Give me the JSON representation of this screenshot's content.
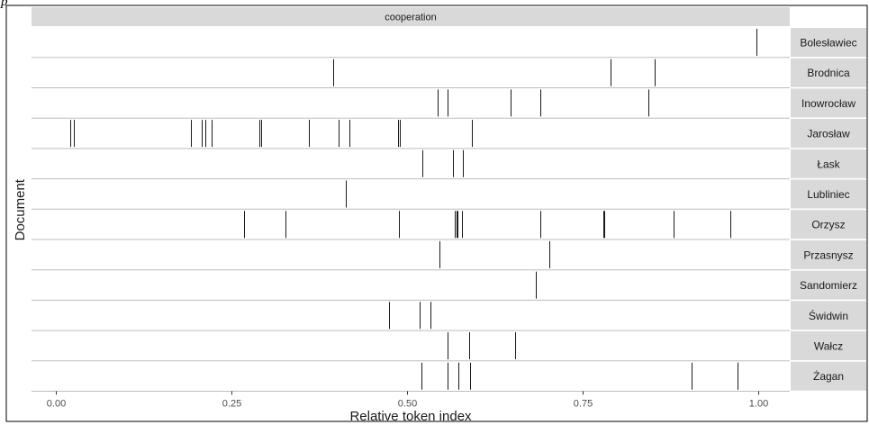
{
  "figure_mark": "p",
  "chart_data": {
    "type": "barcode",
    "facet_strip": "cooperation",
    "xlabel": "Relative token index",
    "ylabel": "Document",
    "xlim": [
      -0.035,
      1.045
    ],
    "x_ticks": [
      0.0,
      0.25,
      0.5,
      0.75,
      1.0
    ],
    "x_tick_labels": [
      "0.00",
      "0.25",
      "0.50",
      "0.75",
      "1.00"
    ],
    "grid": true,
    "series": [
      {
        "name": "Bolesławiec",
        "values": [
          0.997
        ]
      },
      {
        "name": "Brodnica",
        "values": [
          0.395,
          0.79,
          0.853
        ]
      },
      {
        "name": "Inowrocław",
        "values": [
          0.543,
          0.558,
          0.648,
          0.69,
          0.843
        ]
      },
      {
        "name": "Jarosław",
        "values": [
          0.02,
          0.025,
          0.192,
          0.207,
          0.212,
          0.222,
          0.29,
          0.292,
          0.36,
          0.403,
          0.418,
          0.487,
          0.49,
          0.592
        ]
      },
      {
        "name": "Łask",
        "values": [
          0.522,
          0.565,
          0.58
        ]
      },
      {
        "name": "Lubliniec",
        "values": [
          0.413
        ]
      },
      {
        "name": "Orzysz",
        "values": [
          0.268,
          0.327,
          0.488,
          0.568,
          0.57,
          0.572,
          0.578,
          0.69,
          0.78,
          0.781,
          0.88,
          0.96
        ]
      },
      {
        "name": "Przasnysz",
        "values": [
          0.546,
          0.703
        ]
      },
      {
        "name": "Sandomierz",
        "values": [
          0.683
        ]
      },
      {
        "name": "Świdwin",
        "values": [
          0.474,
          0.518,
          0.533
        ]
      },
      {
        "name": "Wałcz",
        "values": [
          0.557,
          0.589,
          0.654
        ]
      },
      {
        "name": "Żagan",
        "values": [
          0.52,
          0.557,
          0.573,
          0.59,
          0.905,
          0.97,
          0.971
        ]
      }
    ],
    "colors": {
      "strip_bg": "#d9d9d9",
      "panel_bg": "#ffffff",
      "panel_sep": "#bdbdbd",
      "mark": "#1a1a1a",
      "text": "#1a1a1a",
      "tick_text": "#4d4d4d"
    }
  }
}
